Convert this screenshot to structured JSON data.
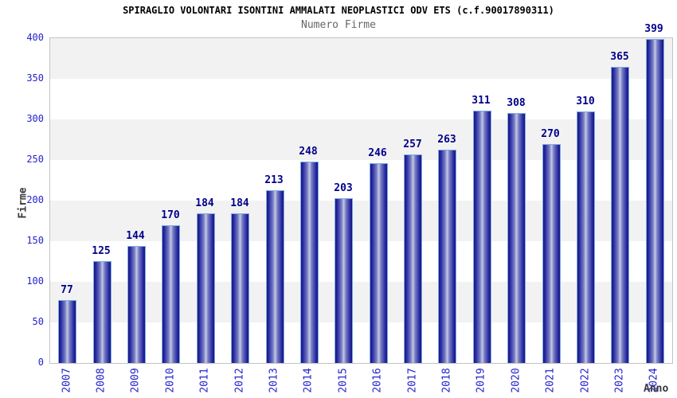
{
  "chart_data": {
    "type": "bar",
    "title": "SPIRAGLIO VOLONTARI ISONTINI AMMALATI NEOPLASTICI ODV ETS (c.f.90017890311)",
    "subtitle": "Numero Firme",
    "xlabel": "Anno",
    "ylabel": "Firme",
    "categories": [
      "2007",
      "2008",
      "2009",
      "2010",
      "2011",
      "2012",
      "2013",
      "2014",
      "2015",
      "2016",
      "2017",
      "2018",
      "2019",
      "2020",
      "2021",
      "2022",
      "2023",
      "2024"
    ],
    "values": [
      77,
      125,
      144,
      170,
      184,
      184,
      213,
      248,
      203,
      246,
      257,
      263,
      311,
      308,
      270,
      310,
      365,
      399
    ],
    "ylim": [
      0,
      400
    ],
    "yticks": [
      0,
      50,
      100,
      150,
      200,
      250,
      300,
      350,
      400
    ],
    "ytick_step": 50,
    "grid": "horizontal-alternating-bands",
    "legend": "none",
    "colors": {
      "bar_edge": "#17177e",
      "bar_dark": "#2a2aa4",
      "bar_light": "#7b82c4",
      "bar_mid": "#c6cae6",
      "bar_outline": "#7cace4",
      "tick_label": "#2323cc",
      "value_label": "#00008b",
      "band_gray": "#f2f2f2",
      "band_white": "#ffffff",
      "plot_border": "#c2c2c2",
      "title_color": "#000000",
      "subtitle_color": "#666666",
      "axis_title_color": "#3a3a3a"
    }
  }
}
